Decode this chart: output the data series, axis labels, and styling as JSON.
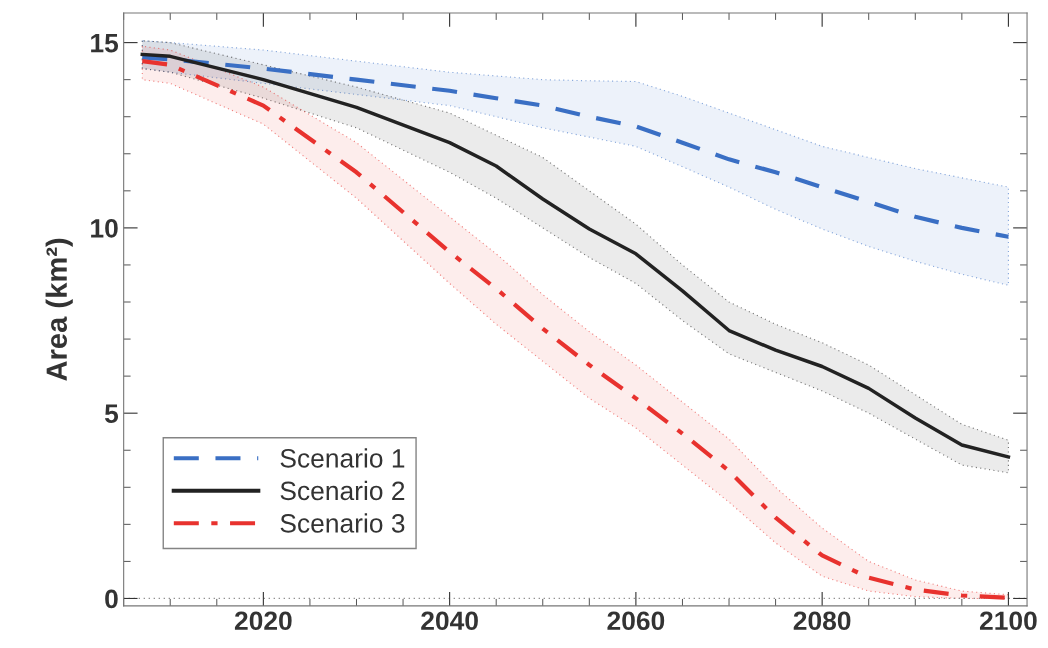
{
  "chart_data": {
    "type": "line",
    "ylabel": "Area (km²)",
    "x": [
      2007,
      2010,
      2020,
      2030,
      2040,
      2045,
      2050,
      2055,
      2060,
      2065,
      2070,
      2075,
      2080,
      2085,
      2090,
      2095,
      2100
    ],
    "series": [
      {
        "name": "Scenario 1",
        "color": "#3a6fc4",
        "line_style": "dashed",
        "values": [
          14.6,
          14.55,
          14.3,
          14.0,
          13.7,
          13.5,
          13.3,
          13.0,
          12.74,
          12.3,
          11.85,
          11.5,
          11.1,
          10.7,
          10.3,
          10.0,
          9.76
        ],
        "upper": [
          15.05,
          15.0,
          14.8,
          14.5,
          14.2,
          14.1,
          14.0,
          13.97,
          13.95,
          13.55,
          13.1,
          12.65,
          12.2,
          11.9,
          11.6,
          11.35,
          11.1
        ],
        "lower": [
          14.3,
          14.2,
          13.9,
          13.6,
          13.3,
          13.0,
          12.7,
          12.45,
          12.2,
          11.65,
          11.1,
          10.5,
          9.97,
          9.5,
          9.1,
          8.75,
          8.45
        ]
      },
      {
        "name": "Scenario 2",
        "color": "#222222",
        "line_style": "solid",
        "values": [
          14.68,
          14.63,
          14.0,
          13.25,
          12.3,
          11.67,
          10.78,
          9.97,
          9.3,
          8.3,
          7.23,
          6.7,
          6.26,
          5.67,
          4.87,
          4.14,
          3.82
        ],
        "upper": [
          15.05,
          15.0,
          14.4,
          13.8,
          13.1,
          12.5,
          11.9,
          11.0,
          10.1,
          9.0,
          8.0,
          7.4,
          6.9,
          6.3,
          5.5,
          4.7,
          4.27
        ],
        "lower": [
          14.3,
          14.2,
          13.5,
          12.7,
          11.5,
          10.8,
          10.0,
          9.2,
          8.5,
          7.5,
          6.6,
          6.1,
          5.6,
          5.0,
          4.3,
          3.6,
          3.39
        ]
      },
      {
        "name": "Scenario 3",
        "color": "#e8322e",
        "line_style": "dashdot",
        "values": [
          14.5,
          14.4,
          13.3,
          11.5,
          9.35,
          8.36,
          7.28,
          6.3,
          5.4,
          4.45,
          3.44,
          2.18,
          1.16,
          0.56,
          0.24,
          0.08,
          0.02
        ],
        "upper": [
          14.9,
          14.8,
          13.8,
          12.3,
          10.3,
          9.3,
          8.2,
          7.2,
          6.3,
          5.3,
          4.3,
          3.0,
          1.9,
          1.0,
          0.5,
          0.2,
          0.1
        ],
        "lower": [
          14.0,
          13.9,
          12.8,
          10.8,
          8.5,
          7.4,
          6.4,
          5.4,
          4.6,
          3.6,
          2.6,
          1.5,
          0.6,
          0.2,
          0.05,
          0.0,
          0.0
        ]
      }
    ],
    "ref_lines": [
      {
        "axis": "y",
        "value": 0,
        "label": null,
        "color": "#888888",
        "line_style": "dotted"
      }
    ],
    "xlim": [
      2005,
      2102
    ],
    "xticks": [
      2020,
      2040,
      2060,
      2080,
      2100
    ],
    "ylim": [
      -0.2,
      15.8
    ],
    "yticks": [
      0,
      5,
      10,
      15
    ],
    "grid": false,
    "legend": "bottom left",
    "marker": "none"
  }
}
